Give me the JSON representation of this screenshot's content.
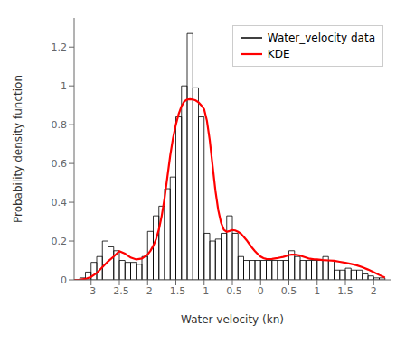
{
  "chart_data": {
    "type": "histogram",
    "xlabel": "Water velocity (kn)",
    "ylabel": "Probability density function",
    "xlim": [
      -3.3,
      2.3
    ],
    "ylim": [
      0,
      1.35
    ],
    "xticks": [
      -3,
      -2.5,
      -2,
      -1.5,
      -1,
      -0.5,
      0,
      0.5,
      1,
      1.5,
      2
    ],
    "yticks": [
      0,
      0.2,
      0.4,
      0.6,
      0.8,
      1,
      1.2
    ],
    "legend": "upper right",
    "series": [
      {
        "name": "Water_velocity data",
        "type": "bar",
        "color": "black",
        "bins": [
          -3.2,
          -3.1,
          -3.0,
          -2.9,
          -2.8,
          -2.7,
          -2.6,
          -2.5,
          -2.4,
          -2.3,
          -2.2,
          -2.1,
          -2.0,
          -1.9,
          -1.8,
          -1.7,
          -1.6,
          -1.5,
          -1.4,
          -1.3,
          -1.2,
          -1.1,
          -1.0,
          -0.9,
          -0.8,
          -0.7,
          -0.6,
          -0.5,
          -0.4,
          -0.3,
          -0.2,
          -0.1,
          0.0,
          0.1,
          0.2,
          0.3,
          0.4,
          0.5,
          0.6,
          0.7,
          0.8,
          0.9,
          1.0,
          1.1,
          1.2,
          1.3,
          1.4,
          1.5,
          1.6,
          1.7,
          1.8,
          1.9,
          2.0,
          2.1,
          2.2
        ],
        "values": [
          0.01,
          0.04,
          0.09,
          0.12,
          0.2,
          0.17,
          0.15,
          0.1,
          0.09,
          0.09,
          0.08,
          0.12,
          0.25,
          0.33,
          0.38,
          0.47,
          0.53,
          0.84,
          1.0,
          1.27,
          0.99,
          0.84,
          0.24,
          0.2,
          0.21,
          0.24,
          0.33,
          0.24,
          0.12,
          0.1,
          0.1,
          0.1,
          0.1,
          0.1,
          0.1,
          0.1,
          0.1,
          0.15,
          0.12,
          0.1,
          0.1,
          0.1,
          0.1,
          0.12,
          0.1,
          0.05,
          0.05,
          0.06,
          0.05,
          0.05,
          0.03,
          0.02,
          0.01,
          0.01
        ]
      },
      {
        "name": "KDE",
        "type": "line",
        "color": "red",
        "x": [
          -3.3,
          -3.2,
          -3.1,
          -3.0,
          -2.9,
          -2.8,
          -2.7,
          -2.6,
          -2.5,
          -2.4,
          -2.3,
          -2.2,
          -2.1,
          -2.0,
          -1.95,
          -1.9,
          -1.85,
          -1.8,
          -1.75,
          -1.7,
          -1.65,
          -1.6,
          -1.55,
          -1.5,
          -1.45,
          -1.4,
          -1.35,
          -1.3,
          -1.25,
          -1.2,
          -1.15,
          -1.1,
          -1.05,
          -1.0,
          -0.95,
          -0.9,
          -0.85,
          -0.8,
          -0.75,
          -0.7,
          -0.65,
          -0.6,
          -0.55,
          -0.5,
          -0.45,
          -0.4,
          -0.35,
          -0.3,
          -0.25,
          -0.2,
          -0.15,
          -0.1,
          -0.05,
          0.0,
          0.05,
          0.1,
          0.15,
          0.2,
          0.25,
          0.3,
          0.35,
          0.4,
          0.45,
          0.5,
          0.55,
          0.6,
          0.65,
          0.7,
          0.75,
          0.8,
          0.85,
          0.9,
          0.95,
          1.0,
          1.1,
          1.2,
          1.3,
          1.4,
          1.5,
          1.6,
          1.7,
          1.8,
          1.9,
          2.0,
          2.1,
          2.2
        ],
        "values": [
          0.0,
          0.001,
          0.005,
          0.015,
          0.035,
          0.065,
          0.095,
          0.12,
          0.148,
          0.135,
          0.115,
          0.105,
          0.11,
          0.13,
          0.15,
          0.175,
          0.21,
          0.26,
          0.33,
          0.42,
          0.53,
          0.64,
          0.73,
          0.8,
          0.855,
          0.895,
          0.92,
          0.93,
          0.932,
          0.93,
          0.925,
          0.915,
          0.9,
          0.88,
          0.82,
          0.72,
          0.59,
          0.46,
          0.36,
          0.295,
          0.258,
          0.248,
          0.252,
          0.257,
          0.255,
          0.248,
          0.238,
          0.222,
          0.205,
          0.185,
          0.165,
          0.148,
          0.133,
          0.12,
          0.112,
          0.108,
          0.107,
          0.108,
          0.11,
          0.112,
          0.115,
          0.118,
          0.122,
          0.128,
          0.13,
          0.13,
          0.128,
          0.125,
          0.12,
          0.115,
          0.11,
          0.108,
          0.106,
          0.105,
          0.102,
          0.1,
          0.098,
          0.093,
          0.088,
          0.082,
          0.075,
          0.065,
          0.053,
          0.04,
          0.025,
          0.012
        ]
      }
    ]
  }
}
